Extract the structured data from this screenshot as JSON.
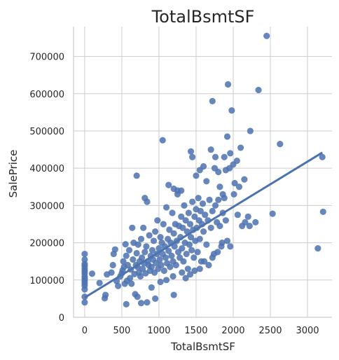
{
  "chart_data": {
    "type": "scatter",
    "title": "TotalBsmtSF",
    "xlabel": "TotalBsmtSF",
    "ylabel": "SalePrice",
    "xlim": [
      -150,
      3330
    ],
    "ylim": [
      0,
      780000
    ],
    "xticks": [
      0,
      500,
      1000,
      1500,
      2000,
      2500,
      3000
    ],
    "yticks": [
      0,
      100000,
      200000,
      300000,
      400000,
      500000,
      600000,
      700000
    ],
    "grid": true,
    "point_color": "#4c72b0",
    "line_color": "#4c72b0",
    "regression_line": {
      "x": [
        0,
        3200
      ],
      "y": [
        53000,
        442000
      ]
    },
    "points": [
      [
        0,
        40000
      ],
      [
        0,
        55000
      ],
      [
        0,
        75000
      ],
      [
        0,
        85000
      ],
      [
        0,
        92000
      ],
      [
        0,
        98000
      ],
      [
        0,
        104000
      ],
      [
        0,
        110000
      ],
      [
        0,
        118000
      ],
      [
        0,
        124000
      ],
      [
        0,
        130000
      ],
      [
        0,
        138000
      ],
      [
        0,
        143000
      ],
      [
        0,
        155000
      ],
      [
        0,
        170000
      ],
      [
        100,
        117000
      ],
      [
        200,
        92000
      ],
      [
        270,
        51000
      ],
      [
        280,
        60000
      ],
      [
        300,
        115000
      ],
      [
        360,
        120000
      ],
      [
        380,
        140000
      ],
      [
        390,
        170000
      ],
      [
        410,
        182000
      ],
      [
        430,
        97000
      ],
      [
        450,
        84000
      ],
      [
        480,
        110000
      ],
      [
        500,
        118000
      ],
      [
        510,
        126000
      ],
      [
        520,
        150000
      ],
      [
        530,
        135000
      ],
      [
        540,
        90000
      ],
      [
        550,
        196000
      ],
      [
        560,
        165000
      ],
      [
        570,
        98000
      ],
      [
        580,
        140000
      ],
      [
        600,
        180000
      ],
      [
        610,
        105000
      ],
      [
        620,
        128000
      ],
      [
        630,
        90000
      ],
      [
        640,
        240000
      ],
      [
        650,
        155000
      ],
      [
        660,
        200000
      ],
      [
        670,
        116000
      ],
      [
        680,
        62000
      ],
      [
        690,
        140000
      ],
      [
        700,
        172000
      ],
      [
        710,
        135000
      ],
      [
        720,
        195000
      ],
      [
        730,
        120000
      ],
      [
        740,
        150000
      ],
      [
        750,
        110000
      ],
      [
        760,
        210000
      ],
      [
        770,
        160000
      ],
      [
        780,
        130000
      ],
      [
        790,
        240000
      ],
      [
        800,
        145000
      ],
      [
        810,
        175000
      ],
      [
        820,
        118000
      ],
      [
        830,
        190000
      ],
      [
        840,
        310000
      ],
      [
        850,
        150000
      ],
      [
        860,
        140000
      ],
      [
        870,
        220000
      ],
      [
        880,
        125000
      ],
      [
        890,
        165000
      ],
      [
        900,
        135000
      ],
      [
        910,
        180000
      ],
      [
        920,
        155000
      ],
      [
        930,
        205000
      ],
      [
        940,
        120000
      ],
      [
        950,
        230000
      ],
      [
        960,
        145000
      ],
      [
        970,
        170000
      ],
      [
        980,
        260000
      ],
      [
        990,
        130000
      ],
      [
        1000,
        185000
      ],
      [
        1010,
        155000
      ],
      [
        1020,
        215000
      ],
      [
        1030,
        140000
      ],
      [
        1040,
        200000
      ],
      [
        1050,
        170000
      ],
      [
        1060,
        250000
      ],
      [
        1070,
        125000
      ],
      [
        1080,
        190000
      ],
      [
        1090,
        160000
      ],
      [
        1100,
        295000
      ],
      [
        1110,
        145000
      ],
      [
        1120,
        210000
      ],
      [
        1130,
        178000
      ],
      [
        1140,
        235000
      ],
      [
        1150,
        135000
      ],
      [
        1160,
        200000
      ],
      [
        1170,
        165000
      ],
      [
        1180,
        280000
      ],
      [
        1190,
        150000
      ],
      [
        1200,
        225000
      ],
      [
        1210,
        190000
      ],
      [
        1220,
        250000
      ],
      [
        1230,
        140000
      ],
      [
        1240,
        205000
      ],
      [
        1250,
        330000
      ],
      [
        1260,
        175000
      ],
      [
        1270,
        245000
      ],
      [
        1280,
        160000
      ],
      [
        1290,
        215000
      ],
      [
        1300,
        270000
      ],
      [
        1310,
        185000
      ],
      [
        1320,
        240000
      ],
      [
        1330,
        150000
      ],
      [
        1340,
        300000
      ],
      [
        1350,
        200000
      ],
      [
        1360,
        260000
      ],
      [
        1370,
        170000
      ],
      [
        1380,
        230000
      ],
      [
        1390,
        130000
      ],
      [
        1400,
        280000
      ],
      [
        1410,
        195000
      ],
      [
        1420,
        250000
      ],
      [
        1430,
        215000
      ],
      [
        1440,
        180000
      ],
      [
        1450,
        310000
      ],
      [
        1460,
        235000
      ],
      [
        1470,
        160000
      ],
      [
        1480,
        270000
      ],
      [
        1490,
        205000
      ],
      [
        1500,
        290000
      ],
      [
        1510,
        240000
      ],
      [
        1520,
        175000
      ],
      [
        1530,
        320000
      ],
      [
        1540,
        260000
      ],
      [
        1550,
        210000
      ],
      [
        1560,
        285000
      ],
      [
        1570,
        150000
      ],
      [
        1580,
        250000
      ],
      [
        1590,
        305000
      ],
      [
        1600,
        230000
      ],
      [
        1620,
        275000
      ],
      [
        1640,
        195000
      ],
      [
        1660,
        260000
      ],
      [
        1680,
        315000
      ],
      [
        1700,
        240000
      ],
      [
        1720,
        285000
      ],
      [
        1740,
        170000
      ],
      [
        1760,
        300000
      ],
      [
        1780,
        255000
      ],
      [
        1800,
        315000
      ],
      [
        1820,
        245000
      ],
      [
        1840,
        190000
      ],
      [
        1860,
        280000
      ],
      [
        1880,
        320000
      ],
      [
        1900,
        260000
      ],
      [
        700,
        380000
      ],
      [
        810,
        320000
      ],
      [
        1050,
        475000
      ],
      [
        1130,
        355000
      ],
      [
        1200,
        345000
      ],
      [
        1250,
        340000
      ],
      [
        1300,
        340000
      ],
      [
        1430,
        445000
      ],
      [
        1450,
        430000
      ],
      [
        1500,
        380000
      ],
      [
        1550,
        395000
      ],
      [
        1600,
        405000
      ],
      [
        1640,
        365000
      ],
      [
        1700,
        450000
      ],
      [
        1720,
        580000
      ],
      [
        1750,
        400000
      ],
      [
        1760,
        430000
      ],
      [
        1800,
        390000
      ],
      [
        1820,
        350000
      ],
      [
        1860,
        330000
      ],
      [
        1880,
        430000
      ],
      [
        1900,
        395000
      ],
      [
        1920,
        485000
      ],
      [
        1930,
        625000
      ],
      [
        1950,
        400000
      ],
      [
        1960,
        440000
      ],
      [
        1980,
        555000
      ],
      [
        2000,
        410000
      ],
      [
        2010,
        330000
      ],
      [
        2020,
        360000
      ],
      [
        2050,
        420000
      ],
      [
        2060,
        275000
      ],
      [
        2080,
        350000
      ],
      [
        2100,
        455000
      ],
      [
        2120,
        245000
      ],
      [
        2150,
        370000
      ],
      [
        2160,
        255000
      ],
      [
        2200,
        270000
      ],
      [
        2220,
        245000
      ],
      [
        2230,
        500000
      ],
      [
        2300,
        255000
      ],
      [
        2340,
        610000
      ],
      [
        2450,
        755000
      ],
      [
        2530,
        278000
      ],
      [
        2630,
        465000
      ],
      [
        3140,
        185000
      ],
      [
        3200,
        430000
      ],
      [
        3210,
        283000
      ],
      [
        1200,
        60000
      ],
      [
        950,
        50000
      ],
      [
        840,
        40000
      ],
      [
        760,
        38000
      ],
      [
        560,
        35000
      ],
      [
        710,
        55000
      ],
      [
        900,
        80000
      ],
      [
        1020,
        95000
      ],
      [
        1100,
        100000
      ],
      [
        1190,
        110000
      ],
      [
        1310,
        120000
      ],
      [
        1360,
        105000
      ],
      [
        1420,
        115000
      ],
      [
        1480,
        125000
      ],
      [
        1550,
        130000
      ],
      [
        1610,
        150000
      ],
      [
        1670,
        140000
      ],
      [
        1720,
        160000
      ],
      [
        1790,
        175000
      ],
      [
        1850,
        200000
      ],
      [
        1920,
        205000
      ],
      [
        1960,
        190000
      ]
    ]
  }
}
